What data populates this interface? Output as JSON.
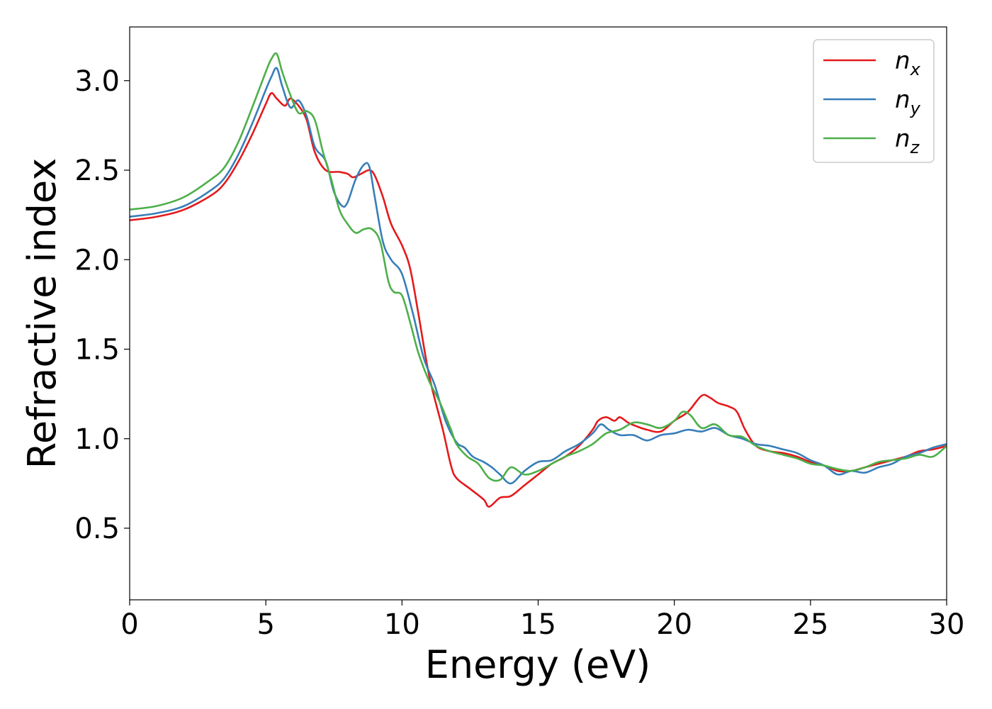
{
  "chart_data": {
    "type": "line",
    "title": "",
    "xlabel": "Energy (eV)",
    "ylabel": "Refractive index",
    "xlim": [
      0,
      30
    ],
    "ylim": [
      0.1,
      3.3
    ],
    "xticks": [
      0,
      5,
      10,
      15,
      20,
      25,
      30
    ],
    "yticks": [
      0.5,
      1.0,
      1.5,
      2.0,
      2.5,
      3.0
    ],
    "xtick_labels": [
      "0",
      "5",
      "10",
      "15",
      "20",
      "25",
      "30"
    ],
    "ytick_labels": [
      "0.5",
      "1.0",
      "1.5",
      "2.0",
      "2.5",
      "3.0"
    ],
    "grid": false,
    "legend_position": "top-right",
    "series": [
      {
        "name": "n",
        "subscript": "x",
        "color": "#e41a1c",
        "x": [
          0,
          1,
          2,
          3,
          3.5,
          4,
          4.5,
          5,
          5.2,
          5.4,
          5.7,
          5.9,
          6.2,
          6.5,
          6.8,
          7.2,
          7.7,
          8.0,
          8.2,
          8.5,
          8.8,
          9.0,
          9.3,
          9.6,
          10.0,
          10.3,
          10.6,
          11.0,
          11.5,
          11.8,
          12.0,
          12.5,
          13.0,
          13.2,
          13.6,
          14.0,
          14.5,
          15.0,
          15.5,
          16.0,
          16.5,
          17.0,
          17.2,
          17.5,
          17.8,
          18.0,
          18.3,
          18.6,
          19.0,
          19.5,
          20.0,
          20.5,
          21.0,
          21.3,
          21.6,
          22.0,
          22.3,
          22.6,
          23.0,
          23.5,
          24.0,
          24.5,
          25.0,
          25.5,
          26.0,
          26.5,
          27.0,
          27.5,
          28.0,
          28.5,
          29.0,
          29.5,
          30.0
        ],
        "y": [
          2.22,
          2.24,
          2.28,
          2.36,
          2.43,
          2.55,
          2.7,
          2.87,
          2.93,
          2.9,
          2.86,
          2.9,
          2.86,
          2.78,
          2.6,
          2.5,
          2.49,
          2.48,
          2.46,
          2.48,
          2.5,
          2.47,
          2.35,
          2.2,
          2.08,
          1.95,
          1.7,
          1.35,
          1.05,
          0.85,
          0.78,
          0.72,
          0.66,
          0.62,
          0.67,
          0.68,
          0.74,
          0.8,
          0.86,
          0.9,
          0.96,
          1.05,
          1.1,
          1.12,
          1.1,
          1.12,
          1.09,
          1.07,
          1.05,
          1.04,
          1.1,
          1.15,
          1.24,
          1.23,
          1.2,
          1.18,
          1.15,
          1.05,
          0.96,
          0.93,
          0.92,
          0.9,
          0.87,
          0.85,
          0.82,
          0.82,
          0.84,
          0.86,
          0.88,
          0.9,
          0.93,
          0.94,
          0.96
        ]
      },
      {
        "name": "n",
        "subscript": "y",
        "color": "#377eb8",
        "x": [
          0,
          1,
          2,
          3,
          3.5,
          4,
          4.5,
          5,
          5.2,
          5.4,
          5.6,
          5.9,
          6.2,
          6.5,
          6.8,
          7.2,
          7.5,
          7.8,
          8.0,
          8.3,
          8.6,
          8.8,
          9.0,
          9.3,
          9.6,
          10.0,
          10.4,
          10.8,
          11.2,
          11.6,
          12.0,
          12.3,
          12.6,
          13.0,
          13.3,
          13.6,
          14.0,
          14.5,
          15.0,
          15.5,
          16.0,
          16.5,
          17.0,
          17.3,
          17.6,
          18.0,
          18.5,
          19.0,
          19.5,
          20.0,
          20.5,
          21.0,
          21.5,
          22.0,
          22.5,
          23.0,
          23.5,
          24.0,
          24.5,
          25.0,
          25.5,
          26.0,
          26.5,
          27.0,
          27.5,
          28.0,
          28.5,
          29.0,
          29.5,
          30.0
        ],
        "y": [
          2.24,
          2.26,
          2.3,
          2.39,
          2.46,
          2.59,
          2.76,
          2.95,
          3.02,
          3.07,
          2.97,
          2.85,
          2.89,
          2.8,
          2.63,
          2.55,
          2.38,
          2.3,
          2.32,
          2.45,
          2.53,
          2.52,
          2.35,
          2.1,
          2.0,
          1.92,
          1.7,
          1.45,
          1.3,
          1.1,
          0.98,
          0.95,
          0.9,
          0.87,
          0.84,
          0.8,
          0.75,
          0.82,
          0.87,
          0.88,
          0.93,
          0.97,
          1.03,
          1.08,
          1.05,
          1.02,
          1.02,
          0.99,
          1.02,
          1.03,
          1.05,
          1.04,
          1.06,
          1.02,
          1.0,
          0.97,
          0.96,
          0.94,
          0.92,
          0.88,
          0.85,
          0.8,
          0.82,
          0.81,
          0.84,
          0.86,
          0.9,
          0.92,
          0.95,
          0.97
        ]
      },
      {
        "name": "n",
        "subscript": "z",
        "color": "#4daf4a",
        "x": [
          0,
          1,
          2,
          3,
          3.5,
          4,
          4.5,
          5,
          5.2,
          5.4,
          5.6,
          5.9,
          6.2,
          6.5,
          6.8,
          7.1,
          7.4,
          7.7,
          8.0,
          8.3,
          8.6,
          8.9,
          9.2,
          9.5,
          9.7,
          10.0,
          10.3,
          10.6,
          11.0,
          11.4,
          11.8,
          12.0,
          12.4,
          12.8,
          13.2,
          13.6,
          14.0,
          14.5,
          15.0,
          15.5,
          16.0,
          16.5,
          17.0,
          17.5,
          18.0,
          18.5,
          19.0,
          19.5,
          20.0,
          20.3,
          20.6,
          21.0,
          21.5,
          22.0,
          22.5,
          23.0,
          23.5,
          24.0,
          24.5,
          25.0,
          25.5,
          26.0,
          26.5,
          27.0,
          27.5,
          28.0,
          28.5,
          29.0,
          29.5,
          30.0
        ],
        "y": [
          2.28,
          2.3,
          2.35,
          2.45,
          2.52,
          2.66,
          2.85,
          3.05,
          3.12,
          3.15,
          3.05,
          2.92,
          2.82,
          2.83,
          2.78,
          2.6,
          2.45,
          2.28,
          2.2,
          2.15,
          2.17,
          2.17,
          2.1,
          1.88,
          1.82,
          1.8,
          1.65,
          1.48,
          1.32,
          1.2,
          1.05,
          0.97,
          0.9,
          0.86,
          0.78,
          0.77,
          0.84,
          0.8,
          0.82,
          0.86,
          0.9,
          0.93,
          0.97,
          1.03,
          1.05,
          1.09,
          1.08,
          1.06,
          1.1,
          1.15,
          1.13,
          1.06,
          1.08,
          1.02,
          1.01,
          0.96,
          0.93,
          0.91,
          0.89,
          0.86,
          0.85,
          0.83,
          0.82,
          0.84,
          0.87,
          0.88,
          0.89,
          0.91,
          0.9,
          0.96
        ]
      }
    ]
  }
}
